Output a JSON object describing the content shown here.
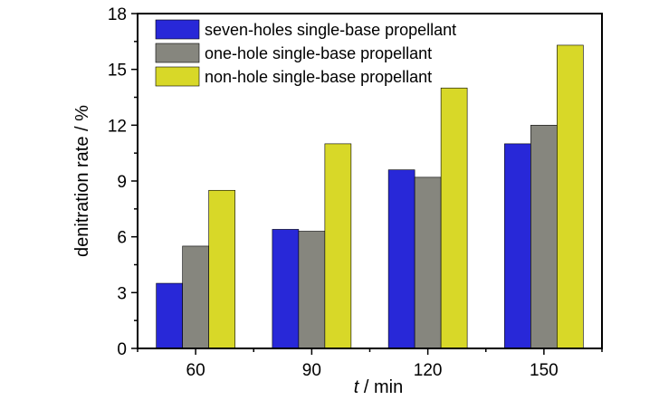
{
  "chart_data": {
    "type": "bar",
    "categories": [
      "60",
      "90",
      "120",
      "150"
    ],
    "series": [
      {
        "name": "seven-holes single-base propellant",
        "color": "#2828d8",
        "values": [
          3.5,
          6.4,
          9.6,
          11.0
        ]
      },
      {
        "name": "one-hole single-base propellant",
        "color": "#86867e",
        "values": [
          5.5,
          6.3,
          9.2,
          12.0
        ]
      },
      {
        "name": "non-hole single-base propellant",
        "color": "#d8d828",
        "values": [
          8.5,
          11.0,
          14.0,
          16.3
        ]
      }
    ],
    "xlabel_var": "t",
    "xlabel_unit": " / min",
    "ylabel": "denitration rate / %",
    "ylim": [
      0,
      18
    ],
    "yticks": [
      "0",
      "3",
      "6",
      "9",
      "12",
      "15",
      "18"
    ],
    "grid": false,
    "legend_position": "top-left"
  }
}
